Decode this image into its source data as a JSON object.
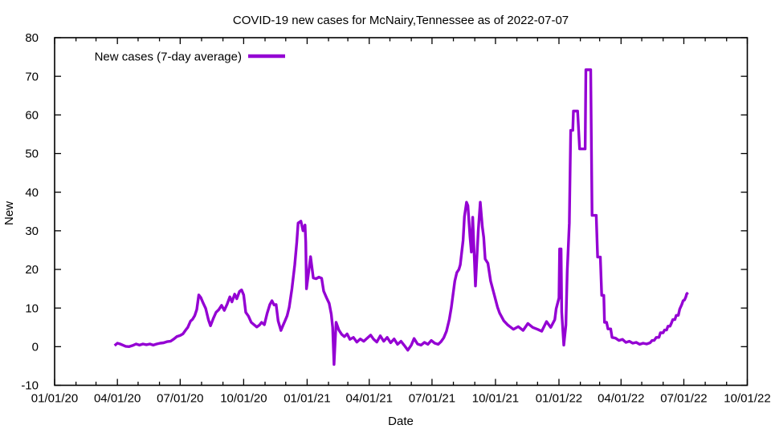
{
  "chart_data": {
    "type": "line",
    "title": "COVID-19 new cases for McNairy,Tennessee as of 2022-07-07",
    "xlabel": "Date",
    "ylabel": "New",
    "grid": false,
    "legend_position": "top-left-inside",
    "x_range": [
      "2020-01-01",
      "2022-10-01"
    ],
    "ylim": [
      -10,
      80
    ],
    "y_ticks": [
      -10,
      0,
      10,
      20,
      30,
      40,
      50,
      60,
      70,
      80
    ],
    "x_ticks": [
      {
        "label": "01/01/20",
        "date": "2020-01-01"
      },
      {
        "label": "04/01/20",
        "date": "2020-04-01"
      },
      {
        "label": "07/01/20",
        "date": "2020-07-01"
      },
      {
        "label": "10/01/20",
        "date": "2020-10-01"
      },
      {
        "label": "01/01/21",
        "date": "2021-01-01"
      },
      {
        "label": "04/01/21",
        "date": "2021-04-01"
      },
      {
        "label": "07/01/21",
        "date": "2021-07-01"
      },
      {
        "label": "10/01/21",
        "date": "2021-10-01"
      },
      {
        "label": "01/01/22",
        "date": "2022-01-01"
      },
      {
        "label": "04/01/22",
        "date": "2022-04-01"
      },
      {
        "label": "07/01/22",
        "date": "2022-07-01"
      },
      {
        "label": "10/01/22",
        "date": "2022-10-01"
      }
    ],
    "series": [
      {
        "name": "New cases (7-day average)",
        "color": "#9400d3",
        "points": [
          [
            "2020-03-28",
            0.3
          ],
          [
            "2020-04-01",
            0.9
          ],
          [
            "2020-04-05",
            0.7
          ],
          [
            "2020-04-09",
            0.4
          ],
          [
            "2020-04-13",
            0.1
          ],
          [
            "2020-04-18",
            0.0
          ],
          [
            "2020-04-23",
            0.3
          ],
          [
            "2020-04-28",
            0.7
          ],
          [
            "2020-05-03",
            0.4
          ],
          [
            "2020-05-08",
            0.7
          ],
          [
            "2020-05-13",
            0.5
          ],
          [
            "2020-05-18",
            0.7
          ],
          [
            "2020-05-23",
            0.4
          ],
          [
            "2020-05-28",
            0.7
          ],
          [
            "2020-06-02",
            0.9
          ],
          [
            "2020-06-07",
            1.0
          ],
          [
            "2020-06-12",
            1.3
          ],
          [
            "2020-06-17",
            1.4
          ],
          [
            "2020-06-22",
            2.0
          ],
          [
            "2020-06-26",
            2.6
          ],
          [
            "2020-07-01",
            2.9
          ],
          [
            "2020-07-05",
            3.3
          ],
          [
            "2020-07-09",
            4.3
          ],
          [
            "2020-07-12",
            5.0
          ],
          [
            "2020-07-16",
            6.6
          ],
          [
            "2020-07-19",
            7.1
          ],
          [
            "2020-07-22",
            8.0
          ],
          [
            "2020-07-25",
            9.6
          ],
          [
            "2020-07-28",
            13.4
          ],
          [
            "2020-07-31",
            12.7
          ],
          [
            "2020-08-03",
            11.4
          ],
          [
            "2020-08-07",
            9.9
          ],
          [
            "2020-08-11",
            6.9
          ],
          [
            "2020-08-14",
            5.4
          ],
          [
            "2020-08-18",
            7.3
          ],
          [
            "2020-08-22",
            8.9
          ],
          [
            "2020-08-26",
            9.6
          ],
          [
            "2020-08-30",
            10.7
          ],
          [
            "2020-09-03",
            9.4
          ],
          [
            "2020-09-07",
            11.0
          ],
          [
            "2020-09-11",
            12.9
          ],
          [
            "2020-09-14",
            11.6
          ],
          [
            "2020-09-18",
            13.6
          ],
          [
            "2020-09-21",
            12.4
          ],
          [
            "2020-09-25",
            14.3
          ],
          [
            "2020-09-28",
            14.7
          ],
          [
            "2020-10-01",
            13.4
          ],
          [
            "2020-10-04",
            8.9
          ],
          [
            "2020-10-08",
            7.9
          ],
          [
            "2020-10-12",
            6.3
          ],
          [
            "2020-10-16",
            5.7
          ],
          [
            "2020-10-20",
            5.1
          ],
          [
            "2020-10-24",
            5.6
          ],
          [
            "2020-10-27",
            6.3
          ],
          [
            "2020-10-31",
            5.7
          ],
          [
            "2020-11-04",
            8.6
          ],
          [
            "2020-11-08",
            10.9
          ],
          [
            "2020-11-11",
            11.9
          ],
          [
            "2020-11-14",
            10.8
          ],
          [
            "2020-11-17",
            10.9
          ],
          [
            "2020-11-20",
            6.7
          ],
          [
            "2020-11-24",
            4.2
          ],
          [
            "2020-11-27",
            5.5
          ],
          [
            "2020-11-30",
            6.7
          ],
          [
            "2020-12-03",
            8.0
          ],
          [
            "2020-12-06",
            10.2
          ],
          [
            "2020-12-10",
            15.0
          ],
          [
            "2020-12-14",
            21.2
          ],
          [
            "2020-12-17",
            27.0
          ],
          [
            "2020-12-19",
            32.0
          ],
          [
            "2020-12-23",
            32.5
          ],
          [
            "2020-12-26",
            30.0
          ],
          [
            "2020-12-29",
            31.5
          ],
          [
            "2020-12-30",
            27.0
          ],
          [
            "2020-12-31",
            15.0
          ],
          [
            "2021-01-03",
            19.0
          ],
          [
            "2021-01-06",
            23.3
          ],
          [
            "2021-01-10",
            17.8
          ],
          [
            "2021-01-14",
            17.6
          ],
          [
            "2021-01-18",
            18.0
          ],
          [
            "2021-01-22",
            17.7
          ],
          [
            "2021-01-25",
            14.4
          ],
          [
            "2021-01-29",
            12.7
          ],
          [
            "2021-02-02",
            11.2
          ],
          [
            "2021-02-05",
            8.4
          ],
          [
            "2021-02-07",
            5.0
          ],
          [
            "2021-02-09",
            -4.6
          ],
          [
            "2021-02-12",
            6.3
          ],
          [
            "2021-02-16",
            4.3
          ],
          [
            "2021-02-20",
            3.2
          ],
          [
            "2021-02-24",
            2.6
          ],
          [
            "2021-02-28",
            3.3
          ],
          [
            "2021-03-04",
            1.9
          ],
          [
            "2021-03-09",
            2.4
          ],
          [
            "2021-03-14",
            1.2
          ],
          [
            "2021-03-19",
            2.0
          ],
          [
            "2021-03-24",
            1.4
          ],
          [
            "2021-03-29",
            2.2
          ],
          [
            "2021-04-03",
            3.0
          ],
          [
            "2021-04-07",
            2.0
          ],
          [
            "2021-04-12",
            1.2
          ],
          [
            "2021-04-17",
            2.8
          ],
          [
            "2021-04-22",
            1.4
          ],
          [
            "2021-04-27",
            2.4
          ],
          [
            "2021-05-02",
            1.0
          ],
          [
            "2021-05-07",
            2.0
          ],
          [
            "2021-05-12",
            0.6
          ],
          [
            "2021-05-17",
            1.4
          ],
          [
            "2021-05-22",
            0.3
          ],
          [
            "2021-05-27",
            -0.9
          ],
          [
            "2021-06-01",
            0.4
          ],
          [
            "2021-06-05",
            2.1
          ],
          [
            "2021-06-10",
            0.7
          ],
          [
            "2021-06-15",
            0.4
          ],
          [
            "2021-06-20",
            1.1
          ],
          [
            "2021-06-25",
            0.6
          ],
          [
            "2021-06-30",
            1.6
          ],
          [
            "2021-07-05",
            0.9
          ],
          [
            "2021-07-10",
            0.6
          ],
          [
            "2021-07-14",
            1.3
          ],
          [
            "2021-07-18",
            2.3
          ],
          [
            "2021-07-22",
            4.0
          ],
          [
            "2021-07-26",
            7.0
          ],
          [
            "2021-07-29",
            10.2
          ],
          [
            "2021-07-31",
            12.9
          ],
          [
            "2021-08-03",
            17.0
          ],
          [
            "2021-08-06",
            19.2
          ],
          [
            "2021-08-09",
            20.0
          ],
          [
            "2021-08-11",
            21.2
          ],
          [
            "2021-08-15",
            27.5
          ],
          [
            "2021-08-17",
            33.7
          ],
          [
            "2021-08-20",
            37.4
          ],
          [
            "2021-08-22",
            36.5
          ],
          [
            "2021-08-25",
            28.5
          ],
          [
            "2021-08-27",
            24.5
          ],
          [
            "2021-08-29",
            33.5
          ],
          [
            "2021-09-02",
            15.7
          ],
          [
            "2021-09-06",
            30.0
          ],
          [
            "2021-09-09",
            37.4
          ],
          [
            "2021-09-12",
            31.0
          ],
          [
            "2021-09-14",
            28.3
          ],
          [
            "2021-09-16",
            22.7
          ],
          [
            "2021-09-20",
            21.6
          ],
          [
            "2021-09-24",
            17.0
          ],
          [
            "2021-09-30",
            12.9
          ],
          [
            "2021-10-04",
            10.2
          ],
          [
            "2021-10-07",
            8.7
          ],
          [
            "2021-10-13",
            6.7
          ],
          [
            "2021-10-19",
            5.6
          ],
          [
            "2021-10-27",
            4.5
          ],
          [
            "2021-11-03",
            5.2
          ],
          [
            "2021-11-10",
            4.2
          ],
          [
            "2021-11-17",
            6.0
          ],
          [
            "2021-11-24",
            5.0
          ],
          [
            "2021-12-01",
            4.5
          ],
          [
            "2021-12-07",
            4.0
          ],
          [
            "2021-12-14",
            6.5
          ],
          [
            "2021-12-20",
            5.0
          ],
          [
            "2021-12-26",
            7.0
          ],
          [
            "2021-12-28",
            9.8
          ],
          [
            "2022-01-01",
            12.6
          ],
          [
            "2022-01-02",
            25.3
          ],
          [
            "2022-01-04",
            25.3
          ],
          [
            "2022-01-05",
            9.0
          ],
          [
            "2022-01-08",
            0.4
          ],
          [
            "2022-01-11",
            5.6
          ],
          [
            "2022-01-13",
            19.6
          ],
          [
            "2022-01-16",
            32.0
          ],
          [
            "2022-01-18",
            56.0
          ],
          [
            "2022-01-21",
            56.0
          ],
          [
            "2022-01-22",
            61.0
          ],
          [
            "2022-01-28",
            61.0
          ],
          [
            "2022-01-31",
            51.2
          ],
          [
            "2022-02-08",
            51.2
          ],
          [
            "2022-02-09",
            71.7
          ],
          [
            "2022-02-16",
            71.7
          ],
          [
            "2022-02-18",
            34.0
          ],
          [
            "2022-02-24",
            34.0
          ],
          [
            "2022-02-26",
            23.2
          ],
          [
            "2022-03-02",
            23.2
          ],
          [
            "2022-03-04",
            13.3
          ],
          [
            "2022-03-07",
            13.3
          ],
          [
            "2022-03-08",
            6.3
          ],
          [
            "2022-03-11",
            6.3
          ],
          [
            "2022-03-13",
            4.6
          ],
          [
            "2022-03-17",
            4.6
          ],
          [
            "2022-03-19",
            2.4
          ],
          [
            "2022-03-24",
            2.2
          ],
          [
            "2022-03-29",
            1.6
          ],
          [
            "2022-04-03",
            1.9
          ],
          [
            "2022-04-08",
            1.1
          ],
          [
            "2022-04-13",
            1.4
          ],
          [
            "2022-04-18",
            0.9
          ],
          [
            "2022-04-23",
            1.1
          ],
          [
            "2022-04-28",
            0.6
          ],
          [
            "2022-05-03",
            0.9
          ],
          [
            "2022-05-08",
            0.7
          ],
          [
            "2022-05-13",
            1.0
          ],
          [
            "2022-05-16",
            1.6
          ],
          [
            "2022-05-19",
            1.6
          ],
          [
            "2022-05-22",
            2.4
          ],
          [
            "2022-05-26",
            2.4
          ],
          [
            "2022-05-28",
            3.6
          ],
          [
            "2022-06-01",
            3.6
          ],
          [
            "2022-06-03",
            4.3
          ],
          [
            "2022-06-06",
            4.3
          ],
          [
            "2022-06-08",
            5.3
          ],
          [
            "2022-06-11",
            5.3
          ],
          [
            "2022-06-13",
            6.1
          ],
          [
            "2022-06-15",
            7.0
          ],
          [
            "2022-06-18",
            7.0
          ],
          [
            "2022-06-20",
            8.1
          ],
          [
            "2022-06-23",
            8.1
          ],
          [
            "2022-06-25",
            9.7
          ],
          [
            "2022-06-28",
            10.9
          ],
          [
            "2022-06-30",
            11.9
          ],
          [
            "2022-07-02",
            12.1
          ],
          [
            "2022-07-04",
            12.9
          ],
          [
            "2022-07-05",
            13.6
          ],
          [
            "2022-07-07",
            14.0
          ]
        ]
      }
    ]
  }
}
